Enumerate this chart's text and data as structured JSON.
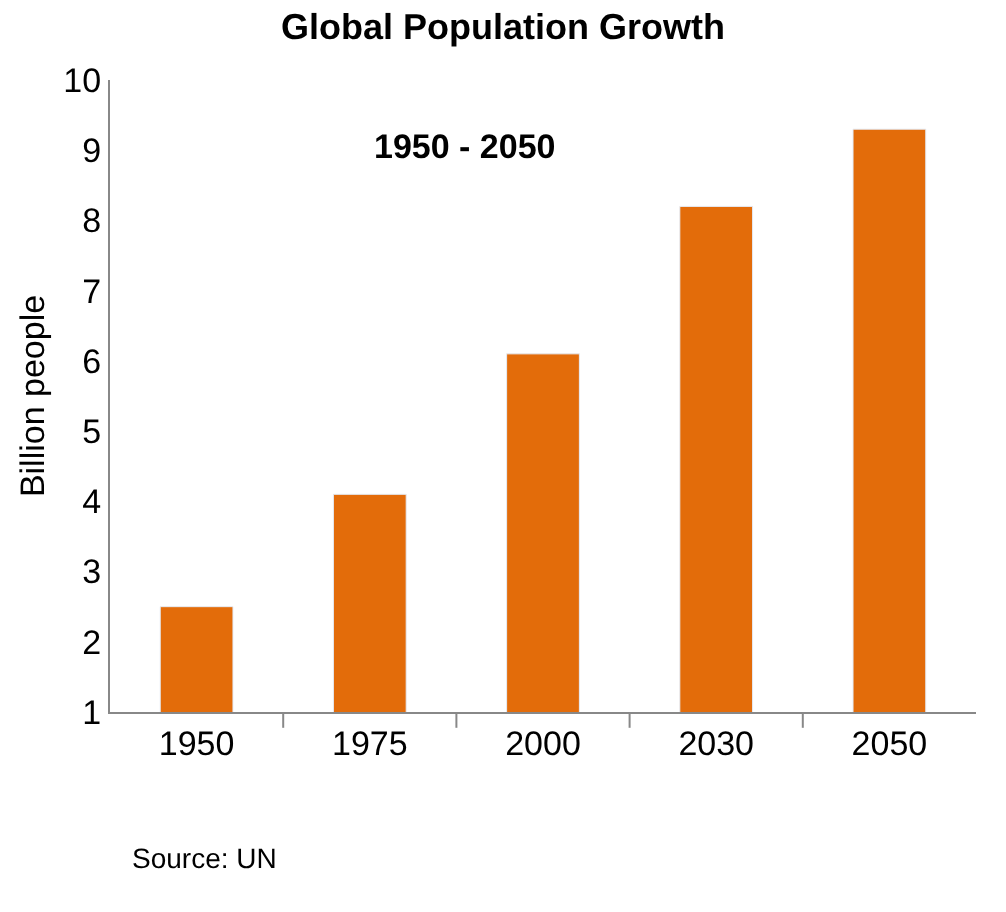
{
  "chart_data": {
    "type": "bar",
    "title": "Global Population Growth",
    "subtitle": "1950 - 2050",
    "ylabel": "Billion people",
    "categories": [
      "1950",
      "1975",
      "2000",
      "2030",
      "2050"
    ],
    "values": [
      2.5,
      4.1,
      6.1,
      8.2,
      9.3
    ],
    "color": "#e36c0a",
    "ylim": [
      1,
      10
    ],
    "yticks": [
      1,
      2,
      3,
      4,
      5,
      6,
      7,
      8,
      9,
      10
    ],
    "annotations": [
      "Source: UN"
    ]
  }
}
